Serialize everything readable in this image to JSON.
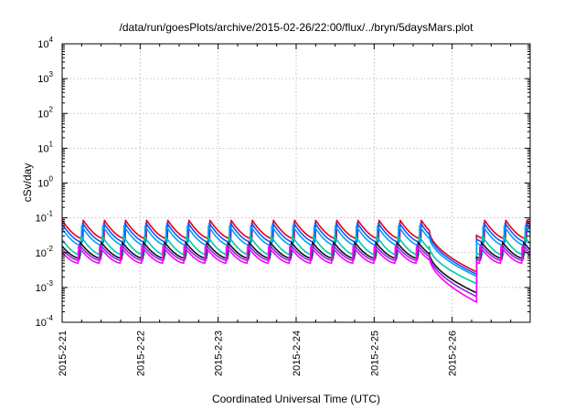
{
  "chart_data": {
    "type": "line",
    "title": "/data/run/goesPlots/archive/2015-02-26/22:00/flux/../bryn/5daysMars.plot",
    "xlabel": "Coordinated Universal Time (UTC)",
    "ylabel": "cSv/day",
    "y_scale": "log",
    "ylim": [
      0.0001,
      10000
    ],
    "y_ticks": [
      {
        "base": "10",
        "exp": "-4"
      },
      {
        "base": "10",
        "exp": "-3"
      },
      {
        "base": "10",
        "exp": "-2"
      },
      {
        "base": "10",
        "exp": "-1"
      },
      {
        "base": "10",
        "exp": "0"
      },
      {
        "base": "10",
        "exp": "1"
      },
      {
        "base": "10",
        "exp": "2"
      },
      {
        "base": "10",
        "exp": "3"
      },
      {
        "base": "10",
        "exp": "4"
      }
    ],
    "xlim": [
      "2015-02-21",
      "2015-02-27"
    ],
    "x_ticks": [
      "2015-2-21",
      "2015-2-22",
      "2015-2-23",
      "2015-2-24",
      "2015-2-25",
      "2015-2-26"
    ],
    "grid": true,
    "legend": "none",
    "sawtooth_period_hours": 6.5,
    "dropout_start": "2015-02-25T17:00",
    "dropout_end": "2015-02-26T07:30",
    "series": [
      {
        "color": "#e8000b",
        "peak": 0.085,
        "trough": 0.025,
        "dropout_min": 0.0028
      },
      {
        "color": "#1a55ff",
        "peak": 0.072,
        "trough": 0.02,
        "dropout_min": 0.0024
      },
      {
        "color": "#00a0ff",
        "peak": 0.058,
        "trough": 0.016,
        "dropout_min": 0.0021
      },
      {
        "color": "#00c8b0",
        "peak": 0.03,
        "trough": 0.0085,
        "dropout_min": 0.0013
      },
      {
        "color": "#111111",
        "peak": 0.02,
        "trough": 0.0068,
        "dropout_min": 0.0007
      },
      {
        "color": "#8a2be2",
        "peak": 0.017,
        "trough": 0.006,
        "dropout_min": 0.00055
      },
      {
        "color": "#ff00ff",
        "peak": 0.015,
        "trough": 0.005,
        "dropout_min": 0.00038
      }
    ]
  }
}
